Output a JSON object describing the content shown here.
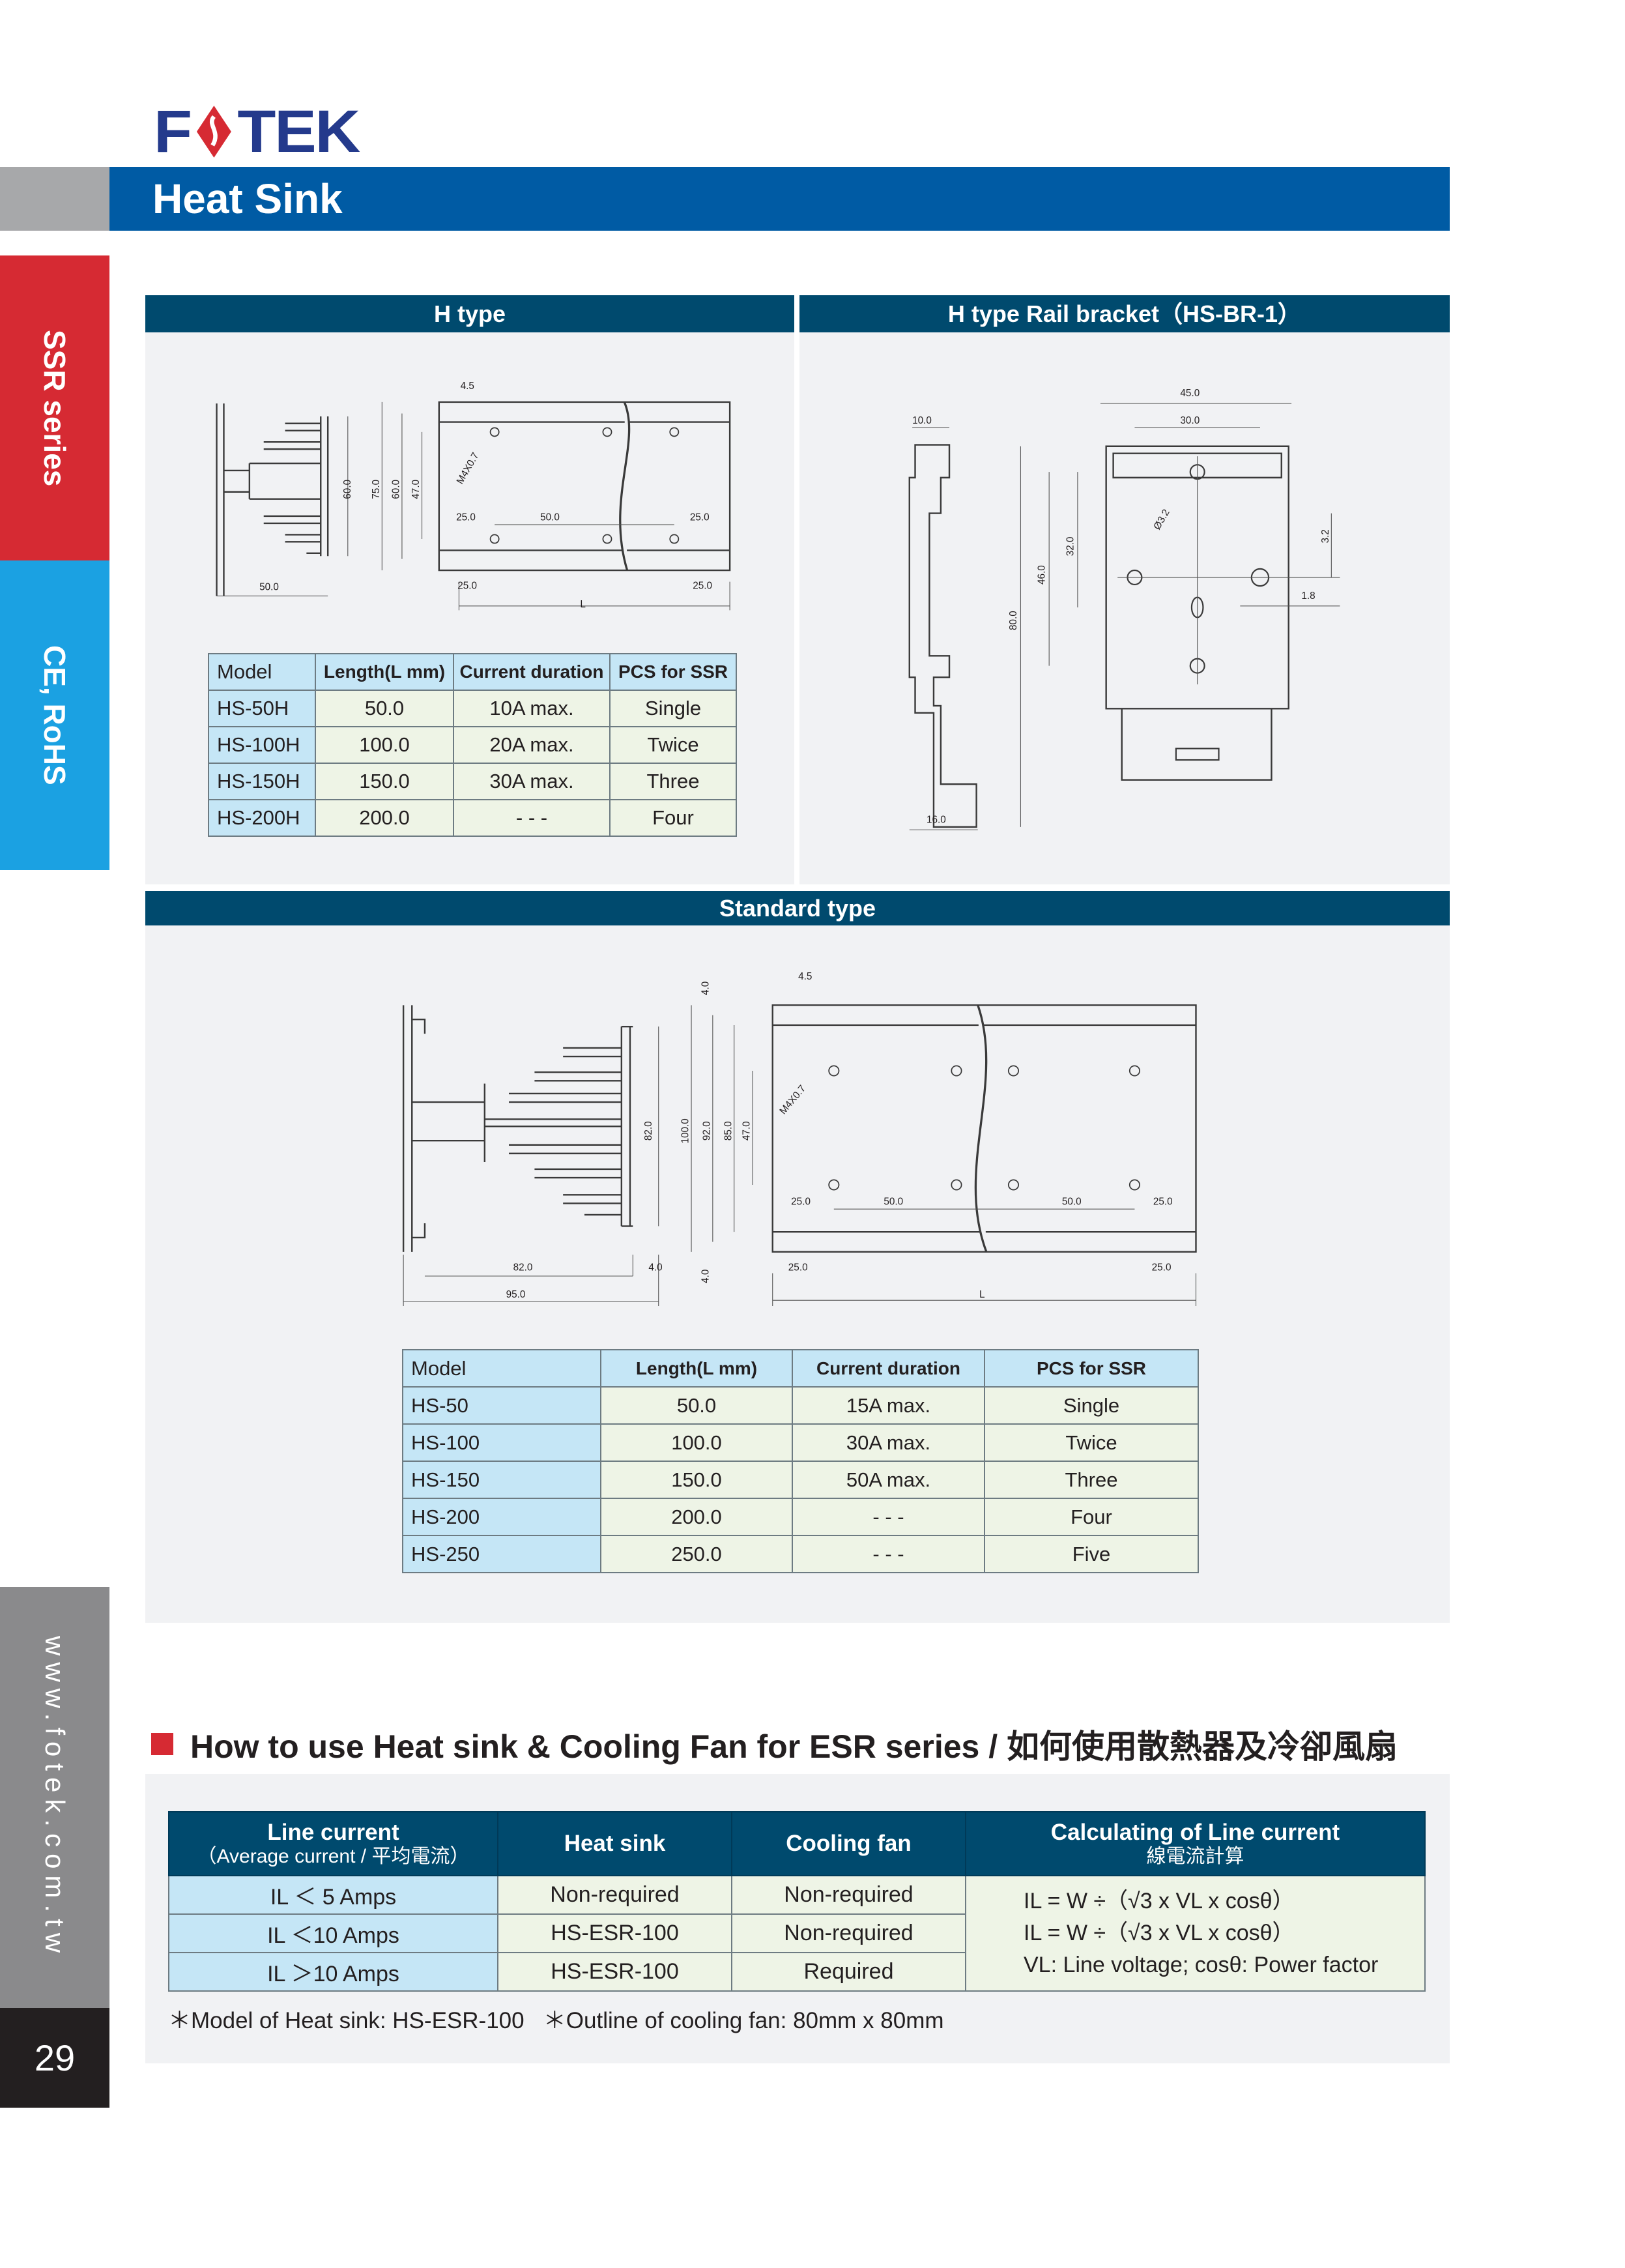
{
  "brand": {
    "logo_text": "FOTEK",
    "accent_red": "#d62a33",
    "navy": "#243a8c"
  },
  "header": {
    "title": "Heat Sink",
    "bar_color": "#005ba4"
  },
  "side_tabs": {
    "ssr": "SSR series",
    "ce": "CE, RoHS",
    "website": "www.fotek.com.tw",
    "page_number": "29"
  },
  "h_type": {
    "title": "H type",
    "table": {
      "headers": [
        "Model",
        "Length(L mm)",
        "Current duration",
        "PCS for SSR"
      ],
      "rows": [
        [
          "HS-50H",
          "50.0",
          "10A max.",
          "Single"
        ],
        [
          "HS-100H",
          "100.0",
          "20A max.",
          "Twice"
        ],
        [
          "HS-150H",
          "150.0",
          "30A max.",
          "Three"
        ],
        [
          "HS-200H",
          "200.0",
          "- - -",
          "Four"
        ]
      ]
    },
    "labels": [
      "4.5",
      "M4X0.7",
      "60.0",
      "75.0",
      "60.0",
      "47.0",
      "25.0",
      "50.0",
      "25.0",
      "50.0",
      "25.0",
      "25.0",
      "L"
    ]
  },
  "rail_bracket": {
    "title": "H type Rail bracket（HS-BR-1）",
    "labels": [
      "10.0",
      "45.0",
      "30.0",
      "Ø3.2",
      "80.0",
      "46.0",
      "32.0",
      "3.2",
      "1.8",
      "16.0"
    ]
  },
  "standard_type": {
    "title": "Standard type",
    "table": {
      "headers": [
        "Model",
        "Length(L mm)",
        "Current duration",
        "PCS for SSR"
      ],
      "rows": [
        [
          "HS-50",
          "50.0",
          "15A max.",
          "Single"
        ],
        [
          "HS-100",
          "100.0",
          "30A max.",
          "Twice"
        ],
        [
          "HS-150",
          "150.0",
          "50A max.",
          "Three"
        ],
        [
          "HS-200",
          "200.0",
          "- - -",
          "Four"
        ],
        [
          "HS-250",
          "250.0",
          "- - -",
          "Five"
        ]
      ]
    },
    "labels": [
      "82.0",
      "82.0",
      "4.0",
      "95.0",
      "4.0",
      "4.5",
      "100.0",
      "92.0",
      "85.0",
      "47.0",
      "M4X0.7",
      "25.0",
      "50.0",
      "50.0",
      "25.0",
      "25.0",
      "25.0",
      "L",
      "4.0"
    ]
  },
  "howto": {
    "title": "How to use Heat sink & Cooling Fan for ESR series / 如何使用散熱器及冷卻風扇",
    "headers": {
      "line_current": "Line current",
      "line_current_sub": "（Average current / 平均電流）",
      "heat_sink": "Heat sink",
      "cooling_fan": "Cooling fan",
      "calc": "Calculating of Line current",
      "calc_sub": "線電流計算"
    },
    "rows": [
      [
        "IL ＜ 5 Amps",
        "Non-required",
        "Non-required"
      ],
      [
        "IL ＜10 Amps",
        "HS-ESR-100",
        "Non-required"
      ],
      [
        "IL ＞10 Amps",
        "HS-ESR-100",
        "Required"
      ]
    ],
    "calc_lines": [
      "IL = W ÷（√3 x VL x cosθ）",
      "IL = W ÷（√3 x VL x cosθ）",
      "VL: Line voltage; cosθ: Power factor"
    ],
    "footnotes": [
      "＊Model of Heat sink: HS-ESR-100",
      "＊Outline of cooling fan: 80mm x 80mm"
    ]
  }
}
